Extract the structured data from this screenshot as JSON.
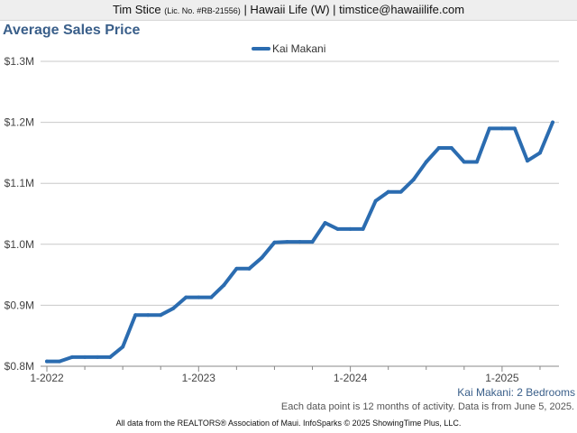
{
  "header": {
    "agent_name": "Tim Stice",
    "license": "(Lic. No. #RB-21556)",
    "brokerage_contact": "| Hawaii Life (W) | timstice@hawaiilife.com"
  },
  "chart_data": {
    "type": "line",
    "title": "Average Sales Price",
    "xlabel": "",
    "ylabel": "",
    "legend_position": "top-center",
    "grid": true,
    "ylim": [
      0.8,
      1.3
    ],
    "yticks": [
      {
        "value": 1.3,
        "label": "$1.3M"
      },
      {
        "value": 1.2,
        "label": "$1.2M"
      },
      {
        "value": 1.1,
        "label": "$1.1M"
      },
      {
        "value": 1.0,
        "label": "$1.0M"
      },
      {
        "value": 0.9,
        "label": "$0.9M"
      },
      {
        "value": 0.8,
        "label": "$0.8M"
      }
    ],
    "xticks": [
      {
        "index": 0,
        "label": "1-2022"
      },
      {
        "index": 12,
        "label": "1-2023"
      },
      {
        "index": 24,
        "label": "1-2024"
      },
      {
        "index": 36,
        "label": "1-2025"
      }
    ],
    "x": [
      "2022-01",
      "2022-02",
      "2022-03",
      "2022-04",
      "2022-05",
      "2022-06",
      "2022-07",
      "2022-08",
      "2022-09",
      "2022-10",
      "2022-11",
      "2022-12",
      "2023-01",
      "2023-02",
      "2023-03",
      "2023-04",
      "2023-05",
      "2023-06",
      "2023-07",
      "2023-08",
      "2023-09",
      "2023-10",
      "2023-11",
      "2023-12",
      "2024-01",
      "2024-02",
      "2024-03",
      "2024-04",
      "2024-05",
      "2024-06",
      "2024-07",
      "2024-08",
      "2024-09",
      "2024-10",
      "2024-11",
      "2024-12",
      "2025-01",
      "2025-02",
      "2025-03",
      "2025-04",
      "2025-05"
    ],
    "series": [
      {
        "name": "Kai Makani",
        "color": "#2b6cb0",
        "values": [
          0.808,
          0.808,
          0.815,
          0.815,
          0.815,
          0.815,
          0.832,
          0.884,
          0.884,
          0.884,
          0.895,
          0.913,
          0.913,
          0.913,
          0.933,
          0.96,
          0.96,
          0.978,
          1.003,
          1.004,
          1.004,
          1.004,
          1.035,
          1.025,
          1.025,
          1.025,
          1.071,
          1.086,
          1.086,
          1.106,
          1.135,
          1.158,
          1.158,
          1.135,
          1.135,
          1.19,
          1.19,
          1.19,
          1.137,
          1.15,
          1.2
        ]
      }
    ]
  },
  "subtitle_right": "Kai Makani: 2 Bedrooms",
  "footnote": "Each data point is 12 months of activity. Data is from June 5, 2025.",
  "credits": "All data from the REALTORS® Association of Maui. InfoSparks © 2025 ShowingTime Plus, LLC."
}
